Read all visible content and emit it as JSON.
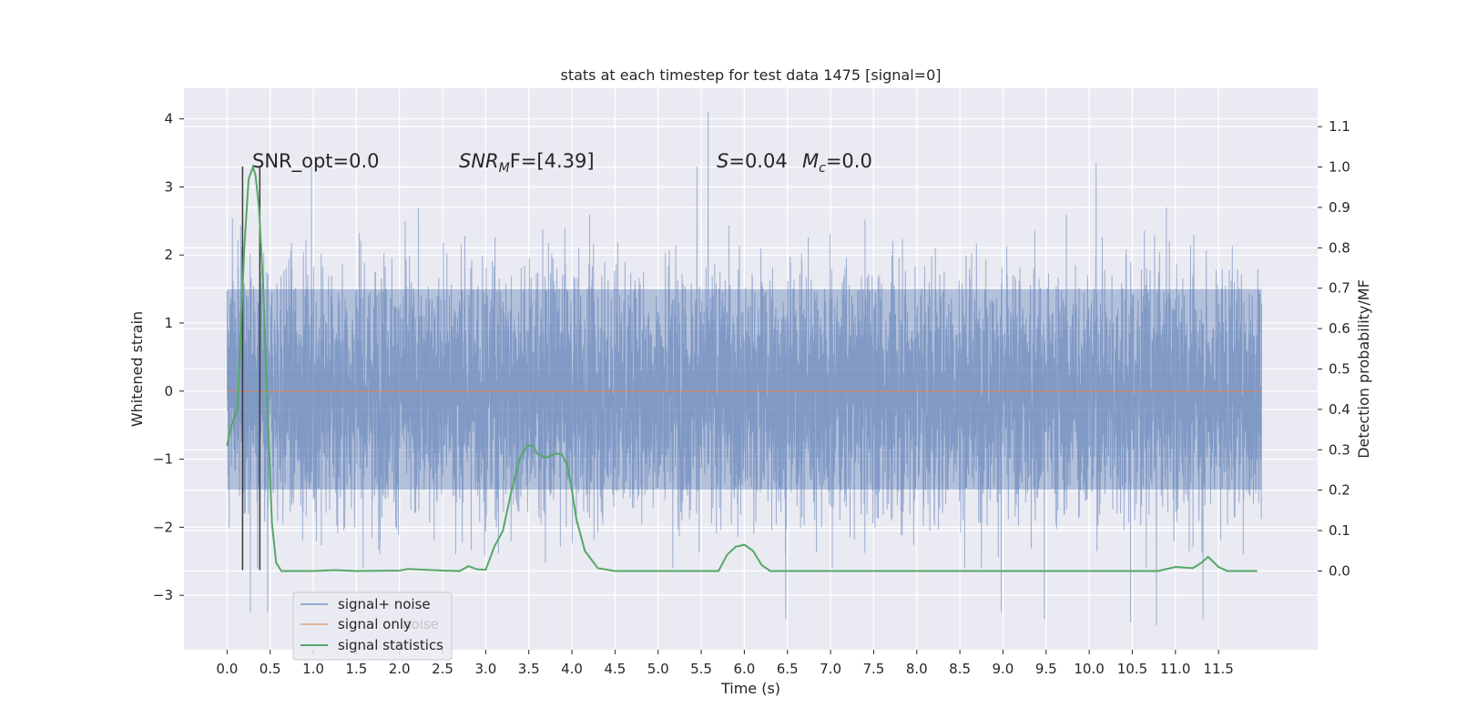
{
  "chart_data": {
    "type": "line",
    "title": "stats at each timestep for test data 1475 [signal=0]",
    "xlabel": "Time (s)",
    "ylabel_left": "Whitened strain",
    "ylabel_right": "Detection probability/MF",
    "xlim": [
      -0.5,
      12.65
    ],
    "ylim_left": [
      -3.8,
      4.45
    ],
    "ylim_right": [
      -0.195,
      1.195
    ],
    "x_ticks": [
      "0.0",
      "0.5",
      "1.0",
      "1.5",
      "2.0",
      "2.5",
      "3.0",
      "3.5",
      "4.0",
      "4.5",
      "5.0",
      "5.5",
      "6.0",
      "6.5",
      "7.0",
      "7.5",
      "8.0",
      "8.5",
      "9.0",
      "9.5",
      "10.0",
      "10.5",
      "11.0",
      "11.5"
    ],
    "y_ticks_left": [
      4,
      3,
      2,
      1,
      0,
      -1,
      -2,
      -3
    ],
    "y_ticks_right": [
      "1.1",
      "1.0",
      "0.9",
      "0.8",
      "0.7",
      "0.6",
      "0.5",
      "0.4",
      "0.3",
      "0.2",
      "0.1",
      "0.0"
    ],
    "grid": true,
    "background": "#eaeaf2",
    "legend_position": "lower-left",
    "legend": [
      "signal+ noise",
      "signal only",
      "signal statistics"
    ],
    "legend_ghost_text": "noise",
    "annotations": {
      "snr_opt": "SNR_opt=0.0",
      "snr_mf_name": "SNR",
      "snr_mf_sub": "M",
      "snr_mf_rest": "F=[4.39]",
      "s_name": "S",
      "s_value": "=0.04",
      "mc_name": "M",
      "mc_sub": "c",
      "mc_value": "=0.0"
    },
    "vertical_markers_x": [
      0.18,
      0.38
    ],
    "series": [
      {
        "name": "signal+ noise",
        "axis": "left",
        "color": "#4c72b0",
        "x_range": [
          0.0,
          12.0
        ],
        "envelope": {
          "dense_band": [
            -1.45,
            1.5
          ],
          "typical_peaks": [
            -2.6,
            2.7
          ],
          "extreme_min": -3.45,
          "extreme_max": 4.1
        },
        "notable_peaks": [
          {
            "x": 5.58,
            "y": 4.1
          },
          {
            "x": 10.08,
            "y": 3.35
          },
          {
            "x": 0.98,
            "y": 3.3
          },
          {
            "x": 5.45,
            "y": 3.3
          },
          {
            "x": 10.78,
            "y": -3.45
          },
          {
            "x": 10.48,
            "y": -3.4
          },
          {
            "x": 6.48,
            "y": -3.35
          },
          {
            "x": 9.48,
            "y": -3.35
          },
          {
            "x": 11.32,
            "y": -3.35
          },
          {
            "x": 0.27,
            "y": -3.25
          },
          {
            "x": 0.47,
            "y": -3.25
          },
          {
            "x": 8.98,
            "y": -3.25
          }
        ]
      },
      {
        "name": "signal only",
        "axis": "left",
        "color": "#dd8452",
        "x": [
          0.0,
          12.0
        ],
        "y": [
          0.0,
          0.0
        ]
      },
      {
        "name": "signal statistics",
        "axis": "right",
        "color": "#55a868",
        "x": [
          0.0,
          0.05,
          0.12,
          0.2,
          0.25,
          0.3,
          0.33,
          0.37,
          0.42,
          0.47,
          0.52,
          0.57,
          0.63,
          0.7,
          1.0,
          1.25,
          1.5,
          2.0,
          2.1,
          2.5,
          2.7,
          2.8,
          2.9,
          3.0,
          3.1,
          3.2,
          3.3,
          3.4,
          3.48,
          3.55,
          3.6,
          3.7,
          3.8,
          3.88,
          3.95,
          4.0,
          4.05,
          4.15,
          4.3,
          4.5,
          5.0,
          5.5,
          5.7,
          5.8,
          5.9,
          6.0,
          6.1,
          6.2,
          6.3,
          6.6,
          7.0,
          7.5,
          8.0,
          9.0,
          10.0,
          10.8,
          11.0,
          11.2,
          11.3,
          11.38,
          11.5,
          11.6,
          11.95
        ],
        "y": [
          0.31,
          0.36,
          0.4,
          0.8,
          0.97,
          1.0,
          0.98,
          0.9,
          0.7,
          0.4,
          0.12,
          0.02,
          0.0,
          0.0,
          0.0,
          0.002,
          0.0,
          0.001,
          0.005,
          0.001,
          0.0,
          0.012,
          0.004,
          0.003,
          0.06,
          0.1,
          0.2,
          0.28,
          0.31,
          0.31,
          0.29,
          0.28,
          0.29,
          0.29,
          0.26,
          0.2,
          0.13,
          0.05,
          0.007,
          0.0,
          0.0,
          0.0,
          0.0,
          0.04,
          0.06,
          0.065,
          0.05,
          0.015,
          0.0,
          0.0,
          0.0,
          0.0,
          0.0,
          0.0,
          0.0,
          0.0,
          0.01,
          0.007,
          0.02,
          0.035,
          0.01,
          0.0,
          0.0
        ]
      }
    ]
  }
}
